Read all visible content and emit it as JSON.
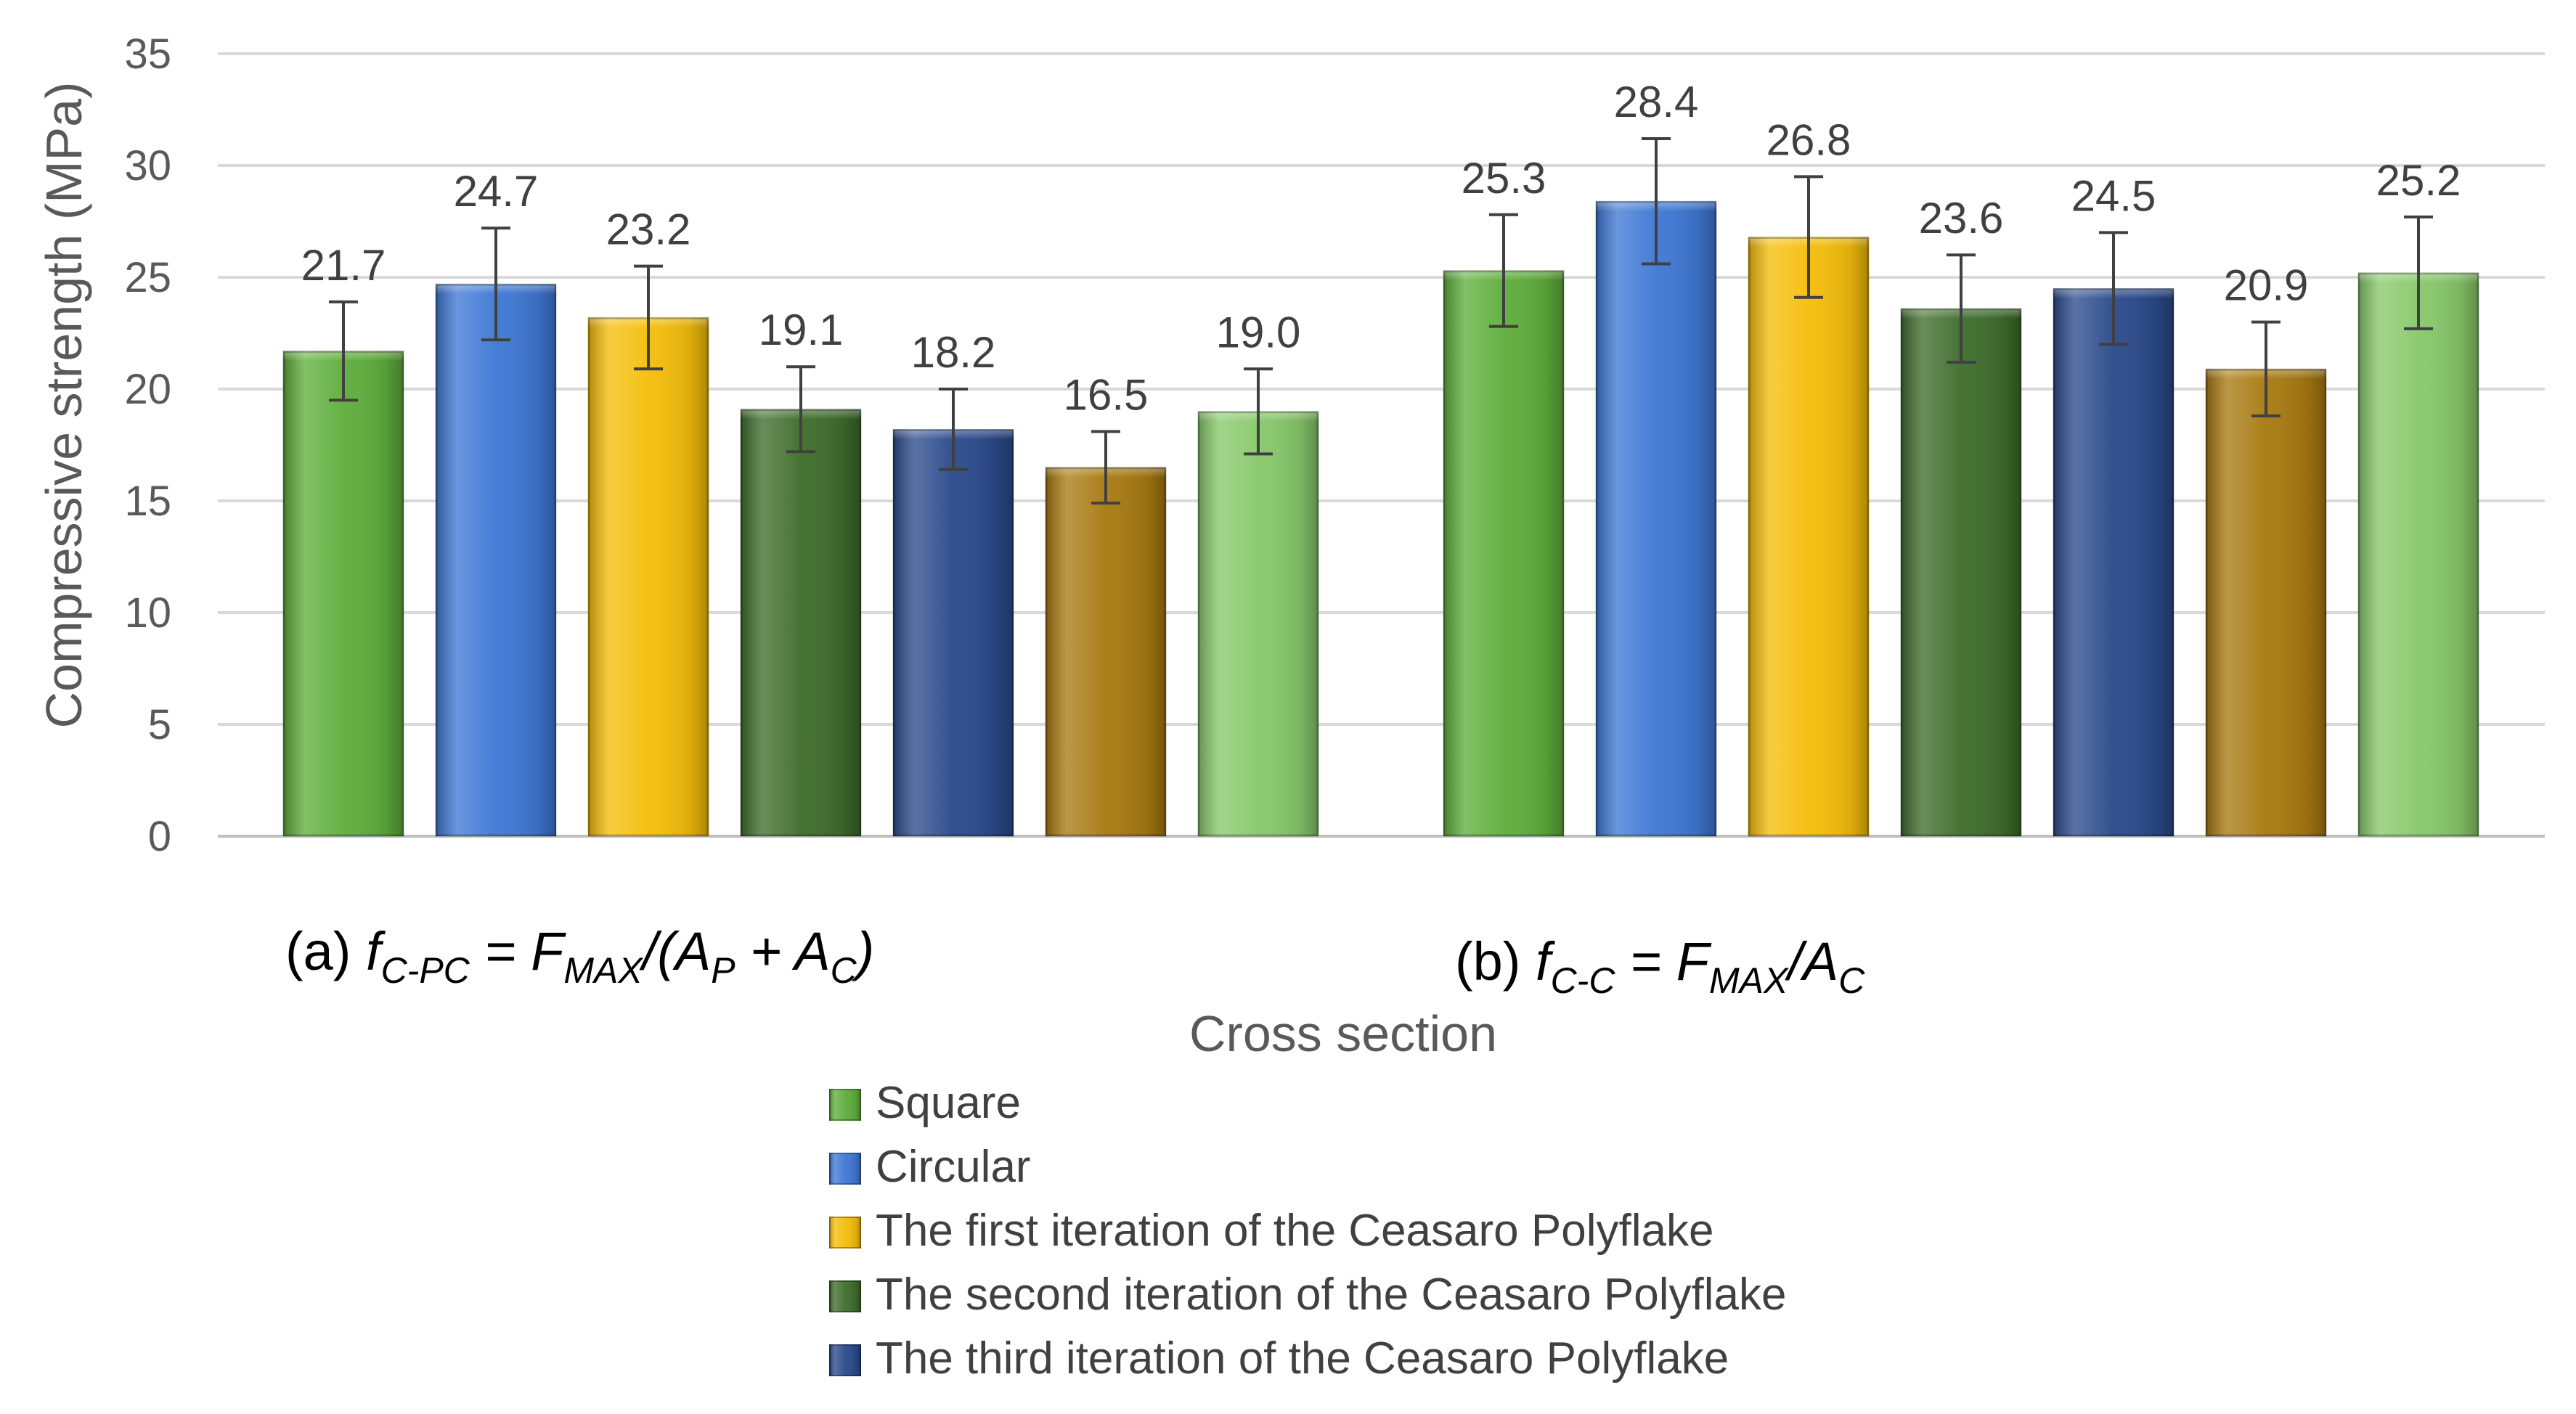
{
  "chart_data": {
    "type": "bar",
    "title": "",
    "xlabel": "Cross section",
    "ylabel": "Compressive strength (MPa)",
    "ylim": [
      0,
      35
    ],
    "yticks": [
      0,
      5,
      10,
      15,
      20,
      25,
      30,
      35
    ],
    "grid": true,
    "legend_position": "bottom",
    "groups": [
      {
        "prefix": "(a) ",
        "f": "f",
        "f_sub": "C-PC",
        "mid": " = F",
        "mid_sub": "MAX",
        "tail": "/(A",
        "tail_sub": "P",
        "plus": " + A",
        "plus_sub": "C",
        "end": ")"
      },
      {
        "prefix": "(b) ",
        "f": "f",
        "f_sub": "C-C",
        "mid": " = F",
        "mid_sub": "MAX",
        "tail": "/A",
        "tail_sub": "C",
        "plus": "",
        "plus_sub": "",
        "end": ""
      }
    ],
    "series": [
      {
        "name": "Square",
        "color": "#5fae3c",
        "values": [
          21.7,
          25.3
        ],
        "labels": [
          "21.7",
          "25.3"
        ],
        "errors": [
          2.2,
          2.5
        ],
        "in_legend": true
      },
      {
        "name": "Circular",
        "color": "#3f78d4",
        "values": [
          24.7,
          28.4
        ],
        "labels": [
          "24.7",
          "28.4"
        ],
        "errors": [
          2.5,
          2.8
        ],
        "in_legend": true
      },
      {
        "name": "The first iteration of the Ceasaro Polyflake",
        "color": "#f5be0b",
        "values": [
          23.2,
          26.8
        ],
        "labels": [
          "23.2",
          "26.8"
        ],
        "errors": [
          2.3,
          2.7
        ],
        "in_legend": true
      },
      {
        "name": "The second iteration of the Ceasaro Polyflake",
        "color": "#3f6d2c",
        "values": [
          19.1,
          23.6
        ],
        "labels": [
          "19.1",
          "23.6"
        ],
        "errors": [
          1.9,
          2.4
        ],
        "in_legend": true
      },
      {
        "name": "The third iteration of the Ceasaro Polyflake",
        "color": "#2b4a8c",
        "values": [
          18.2,
          24.5
        ],
        "labels": [
          "18.2",
          "24.5"
        ],
        "errors": [
          1.8,
          2.5
        ],
        "in_legend": true
      },
      {
        "name": "",
        "color": "#a87a11",
        "values": [
          16.5,
          20.9
        ],
        "labels": [
          "16.5",
          "20.9"
        ],
        "errors": [
          1.6,
          2.1
        ],
        "in_legend": false
      },
      {
        "name": "",
        "color": "#88c96b",
        "values": [
          19.0,
          25.2
        ],
        "labels": [
          "19.0",
          "25.2"
        ],
        "errors": [
          1.9,
          2.5
        ],
        "in_legend": false
      }
    ]
  }
}
